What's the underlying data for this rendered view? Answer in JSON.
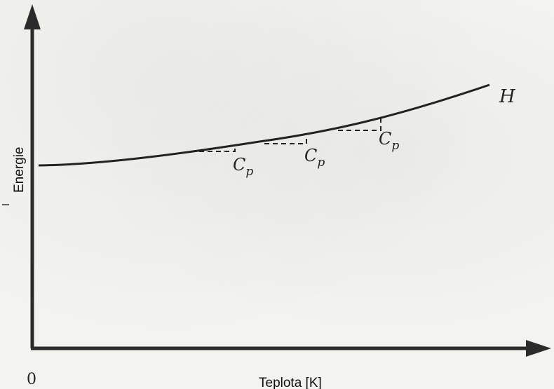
{
  "diagram": {
    "y_axis_label": "Energie",
    "x_axis_label": "Teplota [K]",
    "origin_label": "0",
    "curve_label": "H",
    "slope_labels": [
      {
        "main": "C",
        "sub": "p"
      },
      {
        "main": "C",
        "sub": "p"
      },
      {
        "main": "C",
        "sub": "p"
      }
    ]
  }
}
